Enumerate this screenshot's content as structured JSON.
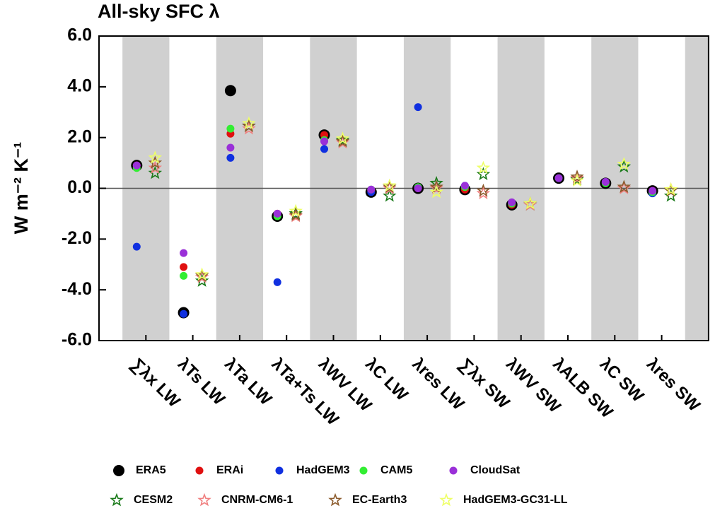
{
  "chart_data": {
    "type": "scatter",
    "title": "All-sky SFC λ",
    "ylabel": "W m⁻² K⁻¹",
    "categories": [
      "∑λx LW",
      "λTs LW",
      "λTa LW",
      "λTa+Ts LW",
      "λWV LW",
      "λC LW",
      "λres LW",
      "∑λx SW",
      "λWV SW",
      "λALB SW",
      "λC SW",
      "λres SW"
    ],
    "ylim": [
      -6,
      6
    ],
    "yticks": [
      {
        "value": -6,
        "label": "-6.0"
      },
      {
        "value": -4,
        "label": "-4.0"
      },
      {
        "value": -2,
        "label": "-2.0"
      },
      {
        "value": 0,
        "label": "0.0"
      },
      {
        "value": 2,
        "label": "2.0"
      },
      {
        "value": 4,
        "label": "4.0"
      },
      {
        "value": 6,
        "label": "6.0"
      }
    ],
    "legend": "bottom",
    "series": [
      {
        "name": "ERA5",
        "color": "#000000",
        "marker": "circle",
        "values": [
          0.9,
          -4.9,
          3.85,
          -1.1,
          2.1,
          -0.15,
          0.0,
          -0.05,
          -0.65,
          0.4,
          0.2,
          -0.1
        ]
      },
      {
        "name": "ERAi",
        "color": "#e01010",
        "marker": "circle",
        "values": [
          0.9,
          -3.1,
          2.15,
          -1.0,
          2.1,
          -0.1,
          0.0,
          -0.05,
          -0.65,
          0.4,
          0.25,
          -0.1
        ]
      },
      {
        "name": "HadGEM3",
        "color": "#1030e0",
        "marker": "circle",
        "values": [
          -2.3,
          -4.95,
          1.2,
          -3.7,
          1.55,
          -0.15,
          3.2,
          0.1,
          -0.6,
          0.4,
          0.25,
          -0.2
        ]
      },
      {
        "name": "CAM5",
        "color": "#33ee33",
        "marker": "circle",
        "values": [
          0.8,
          -3.45,
          2.35,
          -1.1,
          1.9,
          -0.05,
          0.05,
          0.05,
          -0.6,
          0.4,
          0.2,
          -0.15
        ]
      },
      {
        "name": "CloudSat",
        "color": "#9a30d8",
        "marker": "circle",
        "values": [
          0.9,
          -2.55,
          1.6,
          -1.0,
          1.85,
          -0.05,
          0.0,
          0.1,
          -0.55,
          0.4,
          0.25,
          -0.1
        ]
      },
      {
        "name": "CESM2",
        "color": "#1a7a1a",
        "marker": "star",
        "values": [
          0.6,
          -3.65,
          2.45,
          -1.0,
          1.9,
          -0.3,
          0.2,
          0.55,
          -0.65,
          0.35,
          0.85,
          -0.3
        ]
      },
      {
        "name": "CNRM-CM6-1",
        "color": "#f08080",
        "marker": "star",
        "values": [
          0.8,
          -3.5,
          2.35,
          -1.1,
          1.8,
          0.0,
          0.0,
          -0.2,
          -0.65,
          0.4,
          0.0,
          -0.05
        ]
      },
      {
        "name": "EC-Earth3",
        "color": "#8b5a2b",
        "marker": "star",
        "values": [
          1.0,
          -3.45,
          2.45,
          -1.05,
          1.85,
          0.05,
          0.05,
          -0.1,
          -0.6,
          0.45,
          0.05,
          -0.1
        ]
      },
      {
        "name": "HadGEM3-GC31-LL",
        "color": "#eeff66",
        "marker": "star",
        "values": [
          1.2,
          -3.4,
          2.55,
          -0.9,
          1.95,
          0.1,
          -0.15,
          0.8,
          -0.6,
          0.3,
          0.95,
          -0.05
        ]
      }
    ]
  }
}
